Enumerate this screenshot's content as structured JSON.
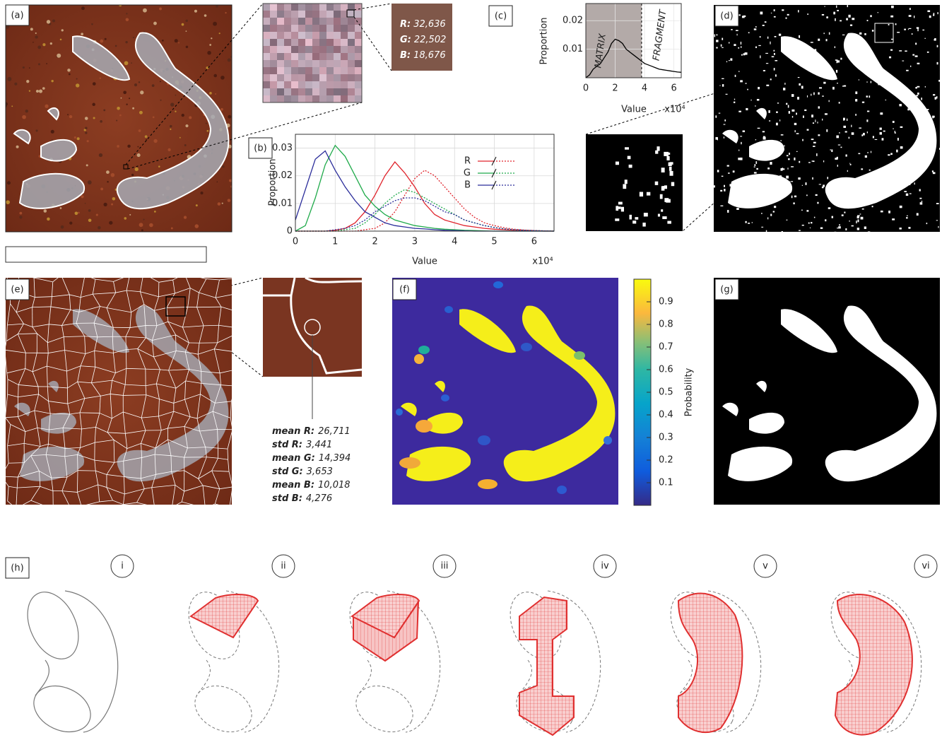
{
  "panel_labels": [
    "(a)",
    "(b)",
    "(c)",
    "(d)",
    "(e)",
    "(f)",
    "(g)",
    "(h)"
  ],
  "pixel_swatch_color": "#7f5749",
  "pixel_rgb": [
    {
      "label": "R:",
      "value": "32,636"
    },
    {
      "label": "G:",
      "value": "22,502"
    },
    {
      "label": "B:",
      "value": "18,676"
    }
  ],
  "superpixel_stats": [
    {
      "label": "mean R:",
      "value": "26,711"
    },
    {
      "label": "std R:",
      "value": "3,441"
    },
    {
      "label": "mean G:",
      "value": "14,394"
    },
    {
      "label": "std G:",
      "value": "3,653"
    },
    {
      "label": "mean B:",
      "value": "10,018"
    },
    {
      "label": "std B:",
      "value": "4,276"
    }
  ],
  "chart_data": [
    {
      "type": "line",
      "xlabel": "Value",
      "ylabel": "Proportion",
      "x_multiplier": "x10⁴",
      "x": [
        0,
        0.25,
        0.5,
        0.75,
        1,
        1.25,
        1.5,
        1.75,
        2,
        2.25,
        2.5,
        2.75,
        3,
        3.25,
        3.5,
        3.75,
        4,
        4.25,
        4.5,
        4.75,
        5,
        5.25,
        5.5,
        5.75,
        6,
        6.25,
        6.5
      ],
      "xlim": [
        0,
        6.5
      ],
      "ylim": [
        0,
        0.035
      ],
      "xticks": [
        0,
        1,
        2,
        3,
        4,
        5,
        6
      ],
      "yticks": [
        0,
        0.01,
        0.02,
        0.03
      ],
      "grid": true,
      "legend": "upper right",
      "series": [
        {
          "name": "R",
          "color": "#e0242c",
          "values": [
            0,
            0,
            0,
            0,
            0.0003,
            0.001,
            0.003,
            0.007,
            0.013,
            0.02,
            0.025,
            0.021,
            0.016,
            0.01,
            0.006,
            0.004,
            0.003,
            0.002,
            0.0015,
            0.001,
            0.0007,
            0.0005,
            0.0003,
            0.0002,
            0.0001,
            0,
            0
          ],
          "dotted_values": [
            0,
            0,
            0,
            0,
            0,
            0,
            0,
            0.0005,
            0.001,
            0.003,
            0.007,
            0.013,
            0.019,
            0.022,
            0.02,
            0.016,
            0.012,
            0.008,
            0.005,
            0.003,
            0.002,
            0.0012,
            0.0007,
            0.0004,
            0.0002,
            0.0001,
            0
          ]
        },
        {
          "name": "G",
          "color": "#1faa4a",
          "values": [
            0,
            0.002,
            0.012,
            0.024,
            0.031,
            0.027,
            0.02,
            0.013,
            0.009,
            0.006,
            0.004,
            0.003,
            0.002,
            0.0015,
            0.001,
            0.0007,
            0.0005,
            0.0003,
            0.0002,
            0.0001,
            0,
            0,
            0,
            0,
            0,
            0,
            0
          ],
          "dotted_values": [
            0,
            0,
            0,
            0,
            0,
            0.0005,
            0.001,
            0.003,
            0.006,
            0.01,
            0.013,
            0.015,
            0.014,
            0.012,
            0.01,
            0.008,
            0.006,
            0.004,
            0.003,
            0.002,
            0.0013,
            0.0008,
            0.0005,
            0.0003,
            0.0002,
            0.0001,
            0
          ]
        },
        {
          "name": "B",
          "color": "#2a2c9a",
          "values": [
            0.004,
            0.015,
            0.026,
            0.029,
            0.022,
            0.016,
            0.011,
            0.007,
            0.005,
            0.003,
            0.002,
            0.0015,
            0.001,
            0.0008,
            0.0005,
            0.0003,
            0.0002,
            0.0001,
            0,
            0,
            0,
            0,
            0,
            0,
            0,
            0,
            0
          ],
          "dotted_values": [
            0,
            0,
            0,
            0,
            0.0005,
            0.001,
            0.002,
            0.004,
            0.007,
            0.009,
            0.011,
            0.012,
            0.012,
            0.011,
            0.009,
            0.007,
            0.006,
            0.004,
            0.003,
            0.002,
            0.0013,
            0.0008,
            0.0005,
            0.0003,
            0.0002,
            0.0001,
            0
          ]
        }
      ]
    },
    {
      "type": "line",
      "xlabel": "Value",
      "ylabel": "Proportion",
      "x_multiplier": "x10⁴",
      "annotations": [
        "MATRIX",
        "FRAGMENT"
      ],
      "threshold": 3.8,
      "x": [
        0,
        0.25,
        0.5,
        0.75,
        1,
        1.25,
        1.5,
        1.75,
        2,
        2.25,
        2.5,
        2.75,
        3,
        3.25,
        3.5,
        3.75,
        4,
        4.25,
        4.5,
        4.75,
        5,
        5.25,
        5.5,
        5.75,
        6,
        6.25,
        6.5
      ],
      "xlim": [
        0,
        6.5
      ],
      "ylim": [
        0,
        0.026
      ],
      "xticks": [
        0,
        2,
        4,
        6
      ],
      "yticks": [
        0.01,
        0.02
      ],
      "grid": true,
      "series": [
        {
          "color": "#000000",
          "values": [
            0,
            0.001,
            0.003,
            0.004,
            0.005,
            0.007,
            0.009,
            0.012,
            0.0135,
            0.013,
            0.012,
            0.01,
            0.009,
            0.008,
            0.007,
            0.006,
            0.005,
            0.0045,
            0.004,
            0.0035,
            0.003,
            0.0028,
            0.0026,
            0.0024,
            0.0022,
            0.002,
            0.0019
          ]
        }
      ]
    }
  ],
  "colorbar": {
    "label": "Probability",
    "lim": [
      0,
      1
    ],
    "ticks": [
      0.1,
      0.2,
      0.3,
      0.4,
      0.5,
      0.6,
      0.7,
      0.8,
      0.9
    ]
  },
  "steps": [
    "i",
    "ii",
    "iii",
    "iv",
    "v",
    "vi"
  ]
}
